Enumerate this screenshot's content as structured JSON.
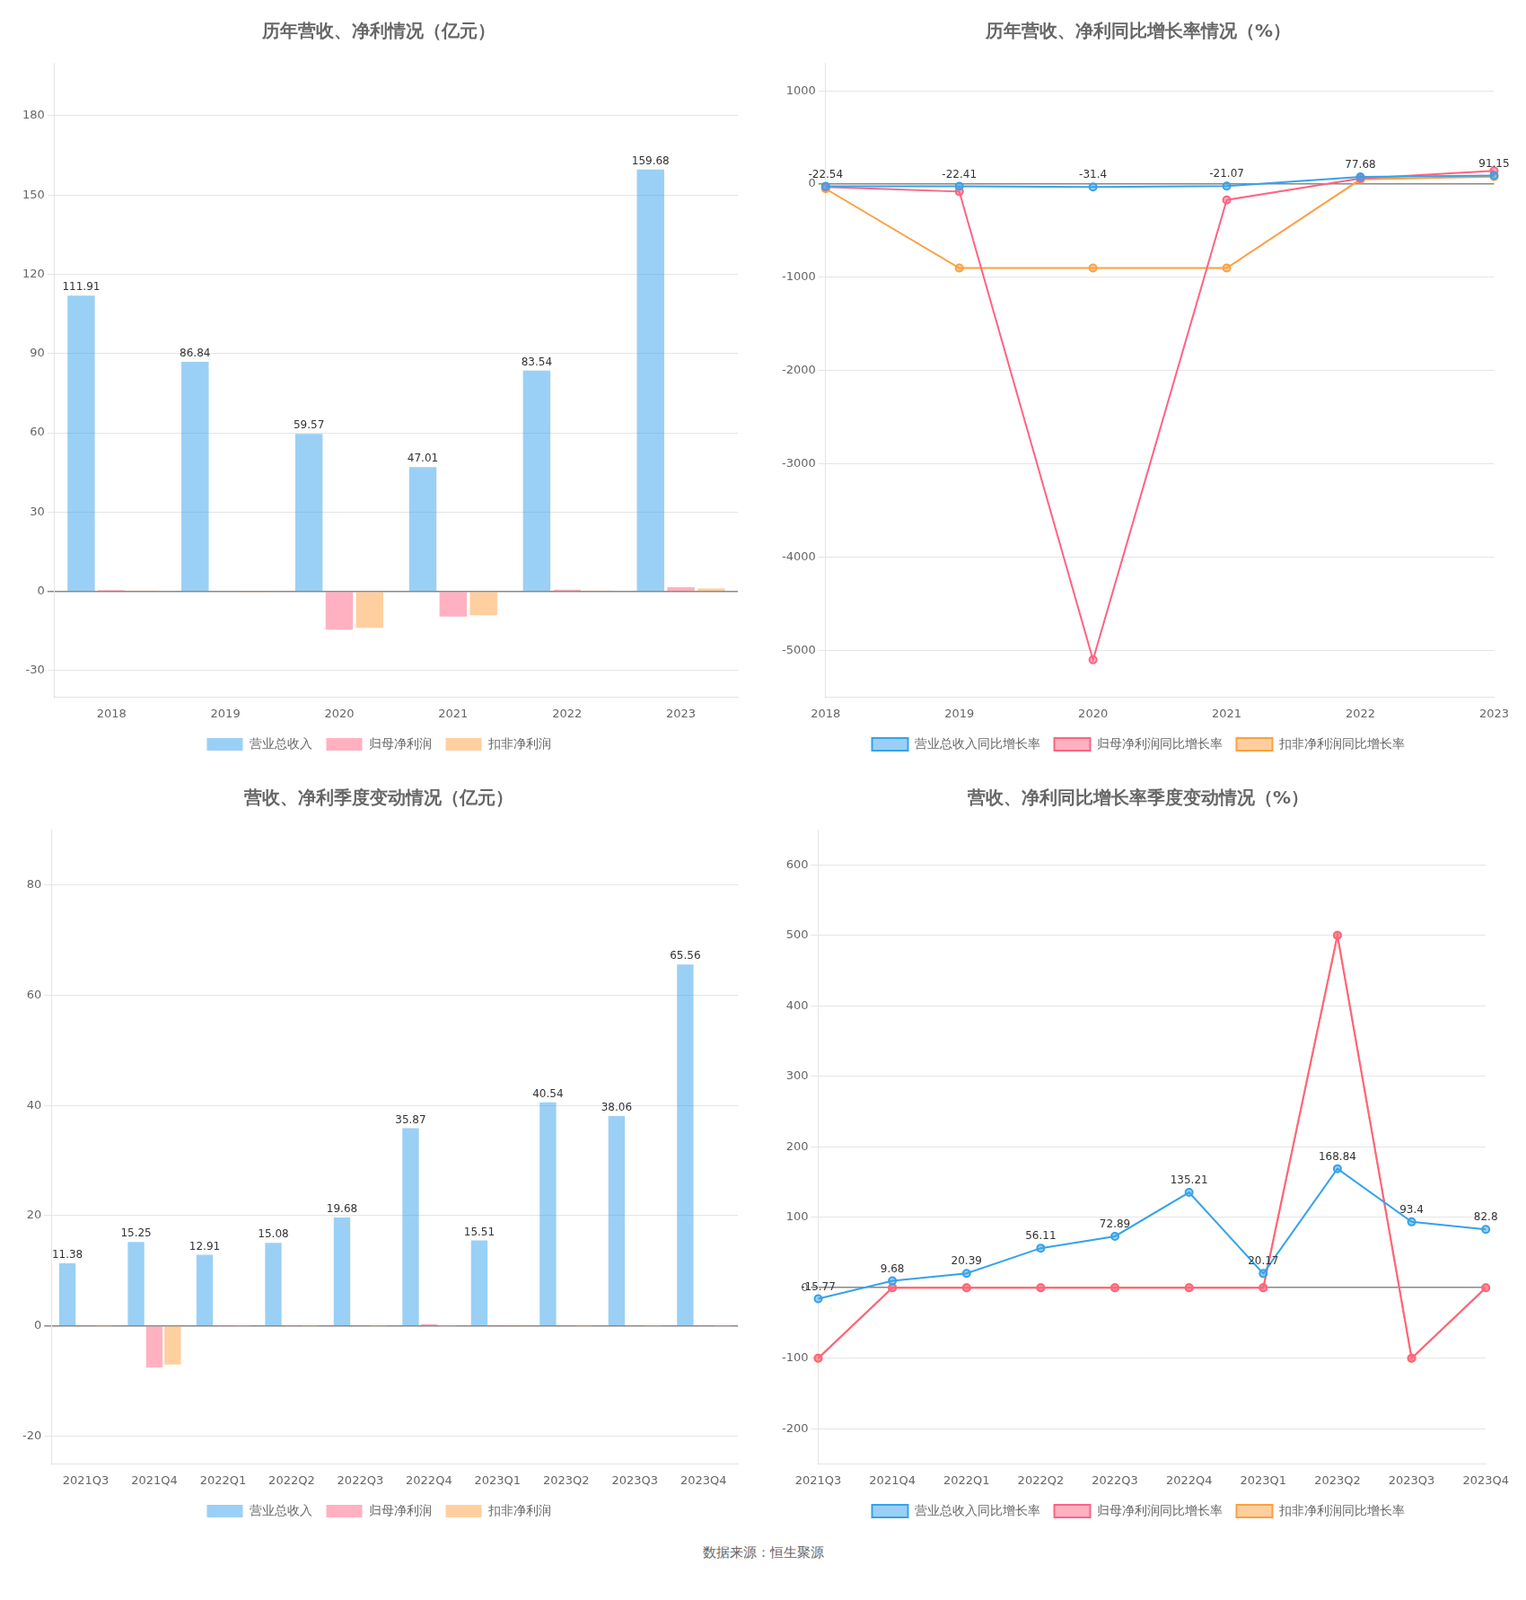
{
  "chart_data": [
    {
      "type": "bar",
      "title": "历年营收、净利情况（亿元）",
      "categories": [
        "2018",
        "2019",
        "2020",
        "2021",
        "2022",
        "2023"
      ],
      "series": [
        {
          "name": "营业总收入",
          "values": [
            111.91,
            86.84,
            59.57,
            47.01,
            83.54,
            159.68
          ],
          "data_labels": true
        },
        {
          "name": "归母净利润",
          "values": [
            0.5,
            -0.3,
            -14.5,
            -9.5,
            0.65,
            1.58
          ]
        },
        {
          "name": "扣非净利润",
          "values": [
            0.3,
            -0.4,
            -13.8,
            -9.0,
            0.3,
            1.1
          ]
        }
      ],
      "ylim": [
        -40,
        200
      ],
      "yticks": [
        -30,
        0,
        30,
        60,
        90,
        120,
        150,
        180
      ],
      "grid": true,
      "legend": "bottom"
    },
    {
      "type": "line",
      "title": "历年营收、净利同比增长率情况（%）",
      "categories": [
        "2018",
        "2019",
        "2020",
        "2021",
        "2022",
        "2023"
      ],
      "series": [
        {
          "name": "营业总收入同比增长率",
          "values": [
            -22.54,
            -22.41,
            -31.4,
            -21.07,
            77.68,
            91.15
          ],
          "marker": "circle",
          "data_labels": true
        },
        {
          "name": "归母净利润同比增长率",
          "values": [
            -30,
            -80,
            -5100,
            -170,
            60,
            142.24
          ],
          "marker": "circle"
        },
        {
          "name": "扣非净利润同比增长率",
          "values": [
            -50,
            -900,
            -900,
            -900,
            50,
            80
          ],
          "marker": "circle"
        }
      ],
      "ylim": [
        -5500,
        1300
      ],
      "yticks": [
        1000,
        0,
        -1000,
        -2000,
        -3000,
        -4000,
        -5000
      ],
      "grid": true,
      "legend": "bottom"
    },
    {
      "type": "bar",
      "title": "营收、净利季度变动情况（亿元）",
      "categories": [
        "2021Q3",
        "2021Q4",
        "2022Q1",
        "2022Q2",
        "2022Q3",
        "2022Q4",
        "2023Q1",
        "2023Q2",
        "2023Q3",
        "2023Q4"
      ],
      "series": [
        {
          "name": "营业总收入",
          "values": [
            11.38,
            15.25,
            12.91,
            15.08,
            19.68,
            35.87,
            15.51,
            40.54,
            38.06,
            65.56
          ],
          "data_labels": true
        },
        {
          "name": "归母净利润",
          "values": [
            0.05,
            -7.5,
            0.03,
            0.03,
            0.05,
            0.35,
            -0.05,
            0.05,
            0.05,
            0.05
          ]
        },
        {
          "name": "扣非净利润",
          "values": [
            0.03,
            -7.0,
            0.02,
            0.02,
            0.02,
            0.02,
            -0.08,
            0.02,
            0.02,
            0.02
          ]
        }
      ],
      "ylim": [
        -25,
        90
      ],
      "yticks": [
        -20,
        0,
        20,
        40,
        60,
        80
      ],
      "grid": true,
      "legend": "bottom"
    },
    {
      "type": "line",
      "title": "营收、净利同比增长率季度变动情况（%）",
      "categories": [
        "2021Q3",
        "2021Q4",
        "2022Q1",
        "2022Q2",
        "2022Q3",
        "2022Q4",
        "2023Q1",
        "2023Q2",
        "2023Q3",
        "2023Q4"
      ],
      "series": [
        {
          "name": "营业总收入同比增长率",
          "values": [
            -15.77,
            9.68,
            20.39,
            56.11,
            72.89,
            135.21,
            20.17,
            168.84,
            93.4,
            82.8
          ],
          "marker": "circle",
          "data_labels": true
        },
        {
          "name": "归母净利润同比增长率",
          "values": [
            -100,
            0,
            0,
            0,
            0,
            0,
            0,
            500,
            -100,
            0
          ],
          "marker": "circle"
        },
        {
          "name": "扣非净利润同比增长率",
          "values": [
            -100,
            0,
            0,
            0,
            0,
            0,
            0,
            500,
            -100,
            0
          ],
          "marker": "circle"
        }
      ],
      "ylim": [
        -250,
        650
      ],
      "yticks": [
        -200,
        -100,
        0,
        100,
        200,
        300,
        400,
        500,
        600
      ],
      "grid": true,
      "legend": "bottom"
    }
  ],
  "footer": "数据来源：恒生聚源"
}
